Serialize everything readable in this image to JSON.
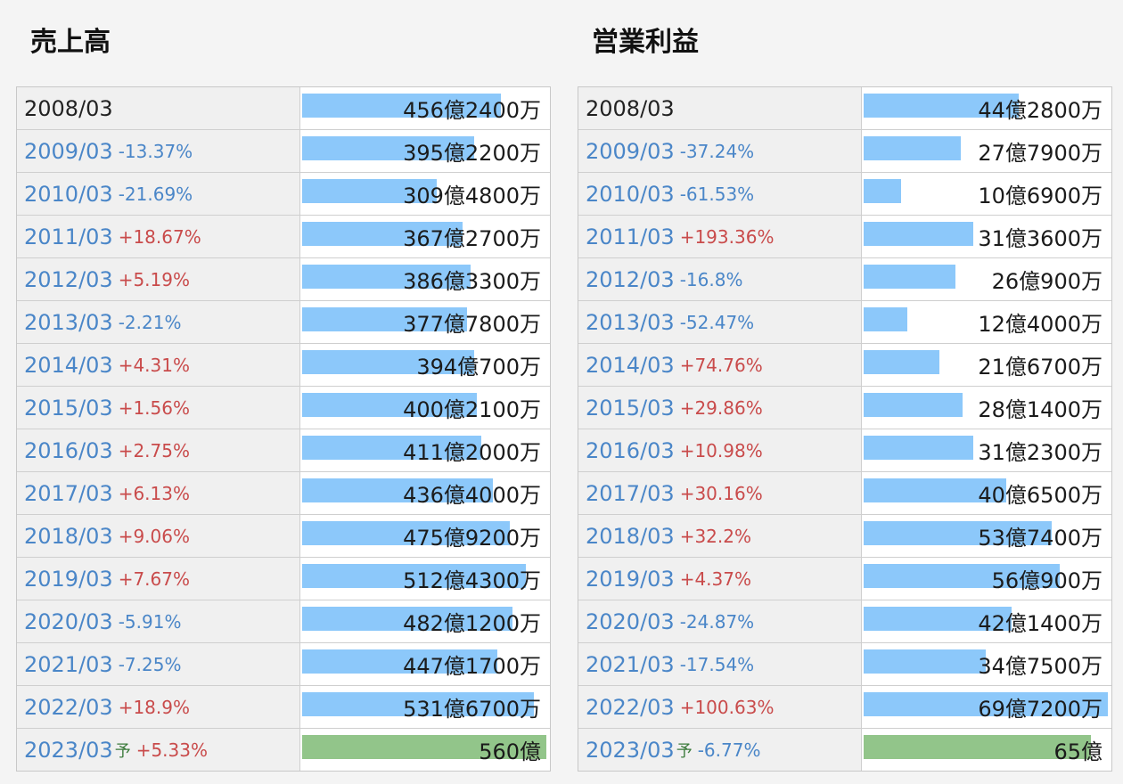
{
  "chart_data": [
    {
      "type": "bar",
      "title": "売上高",
      "unit_suffix": "万",
      "rows": [
        {
          "year": "2008/03",
          "change": "",
          "forecast": false,
          "value_oku": 456.24,
          "label": "456億2400万"
        },
        {
          "year": "2009/03",
          "change": "-13.37%",
          "forecast": false,
          "value_oku": 395.22,
          "label": "395億2200万"
        },
        {
          "year": "2010/03",
          "change": "-21.69%",
          "forecast": false,
          "value_oku": 309.48,
          "label": "309億4800万"
        },
        {
          "year": "2011/03",
          "change": "+18.67%",
          "forecast": false,
          "value_oku": 367.27,
          "label": "367億2700万"
        },
        {
          "year": "2012/03",
          "change": "+5.19%",
          "forecast": false,
          "value_oku": 386.33,
          "label": "386億3300万"
        },
        {
          "year": "2013/03",
          "change": "-2.21%",
          "forecast": false,
          "value_oku": 377.78,
          "label": "377億7800万"
        },
        {
          "year": "2014/03",
          "change": "+4.31%",
          "forecast": false,
          "value_oku": 394.07,
          "label": "394億700万"
        },
        {
          "year": "2015/03",
          "change": "+1.56%",
          "forecast": false,
          "value_oku": 400.21,
          "label": "400億2100万"
        },
        {
          "year": "2016/03",
          "change": "+2.75%",
          "forecast": false,
          "value_oku": 411.2,
          "label": "411億2000万"
        },
        {
          "year": "2017/03",
          "change": "+6.13%",
          "forecast": false,
          "value_oku": 436.4,
          "label": "436億4000万"
        },
        {
          "year": "2018/03",
          "change": "+9.06%",
          "forecast": false,
          "value_oku": 475.92,
          "label": "475億9200万"
        },
        {
          "year": "2019/03",
          "change": "+7.67%",
          "forecast": false,
          "value_oku": 512.43,
          "label": "512億4300万"
        },
        {
          "year": "2020/03",
          "change": "-5.91%",
          "forecast": false,
          "value_oku": 482.12,
          "label": "482億1200万"
        },
        {
          "year": "2021/03",
          "change": "-7.25%",
          "forecast": false,
          "value_oku": 447.17,
          "label": "447億1700万"
        },
        {
          "year": "2022/03",
          "change": "+18.9%",
          "forecast": false,
          "value_oku": 531.67,
          "label": "531億6700万"
        },
        {
          "year": "2023/03",
          "change": "+5.33%",
          "forecast": true,
          "value_oku": 560,
          "label": "560億"
        }
      ]
    },
    {
      "type": "bar",
      "title": "営業利益",
      "rows": [
        {
          "year": "2008/03",
          "change": "",
          "forecast": false,
          "value_oku": 44.28,
          "label": "44億2800万"
        },
        {
          "year": "2009/03",
          "change": "-37.24%",
          "forecast": false,
          "value_oku": 27.79,
          "label": "27億7900万"
        },
        {
          "year": "2010/03",
          "change": "-61.53%",
          "forecast": false,
          "value_oku": 10.69,
          "label": "10億6900万"
        },
        {
          "year": "2011/03",
          "change": "+193.36%",
          "forecast": false,
          "value_oku": 31.36,
          "label": "31億3600万"
        },
        {
          "year": "2012/03",
          "change": "-16.8%",
          "forecast": false,
          "value_oku": 26.09,
          "label": "26億900万"
        },
        {
          "year": "2013/03",
          "change": "-52.47%",
          "forecast": false,
          "value_oku": 12.4,
          "label": "12億4000万"
        },
        {
          "year": "2014/03",
          "change": "+74.76%",
          "forecast": false,
          "value_oku": 21.67,
          "label": "21億6700万"
        },
        {
          "year": "2015/03",
          "change": "+29.86%",
          "forecast": false,
          "value_oku": 28.14,
          "label": "28億1400万"
        },
        {
          "year": "2016/03",
          "change": "+10.98%",
          "forecast": false,
          "value_oku": 31.23,
          "label": "31億2300万"
        },
        {
          "year": "2017/03",
          "change": "+30.16%",
          "forecast": false,
          "value_oku": 40.65,
          "label": "40億6500万"
        },
        {
          "year": "2018/03",
          "change": "+32.2%",
          "forecast": false,
          "value_oku": 53.74,
          "label": "53億7400万"
        },
        {
          "year": "2019/03",
          "change": "+4.37%",
          "forecast": false,
          "value_oku": 56.09,
          "label": "56億900万"
        },
        {
          "year": "2020/03",
          "change": "-24.87%",
          "forecast": false,
          "value_oku": 42.14,
          "label": "42億1400万"
        },
        {
          "year": "2021/03",
          "change": "-17.54%",
          "forecast": false,
          "value_oku": 34.75,
          "label": "34億7500万"
        },
        {
          "year": "2022/03",
          "change": "+100.63%",
          "forecast": false,
          "value_oku": 69.72,
          "label": "69億7200万"
        },
        {
          "year": "2023/03",
          "change": "-6.77%",
          "forecast": true,
          "value_oku": 65,
          "label": "65億"
        }
      ]
    }
  ],
  "forecast_marker": "予",
  "colors": {
    "bar": "#8cc8fa",
    "forecast_bar": "#92c58a",
    "negative_change": "#4a86c8",
    "positive_change": "#c94b4b",
    "year_link": "#4a86c8"
  }
}
